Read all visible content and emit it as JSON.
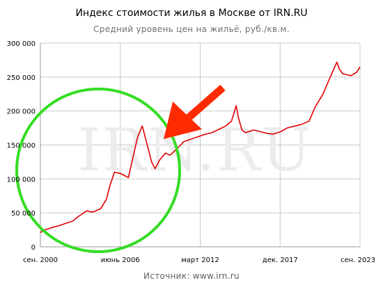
{
  "chart_data": {
    "type": "line",
    "title": "Индекс стоимости жилья в Москве от IRN.RU",
    "subtitle": "Средний уровень цен на жильё, руб./кв.м.",
    "source": "Источник: www.irn.ru",
    "watermark": "IRN.RU",
    "xlabel": "",
    "ylabel": "",
    "ylim": [
      0,
      300000
    ],
    "xlim": [
      "2000-09",
      "2023-09"
    ],
    "y_ticks": [
      {
        "value": 0,
        "label": "0"
      },
      {
        "value": 50000,
        "label": "50 000"
      },
      {
        "value": 100000,
        "label": "100 000"
      },
      {
        "value": 150000,
        "label": "150 000"
      },
      {
        "value": 200000,
        "label": "200 000"
      },
      {
        "value": 250000,
        "label": "250 000"
      },
      {
        "value": 300000,
        "label": "300 000"
      }
    ],
    "x_ticks": [
      {
        "value": "2000-09",
        "label": "сен. 2000"
      },
      {
        "value": "2006-06",
        "label": "июнь 2006"
      },
      {
        "value": "2012-03",
        "label": "март 2012"
      },
      {
        "value": "2017-12",
        "label": "дек. 2017"
      },
      {
        "value": "2023-09",
        "label": "сен. 2023"
      }
    ],
    "grid": true,
    "colors": {
      "line": "#e00000",
      "circle": "#33dd22",
      "arrow": "#ff2a00",
      "grid": "#c8c8c8"
    },
    "series": [
      {
        "name": "",
        "x": [
          "2000-09",
          "2001-01",
          "2001-06",
          "2002-01",
          "2002-06",
          "2003-01",
          "2003-06",
          "2004-01",
          "2004-06",
          "2005-01",
          "2005-06",
          "2005-09",
          "2006-01",
          "2006-06",
          "2007-01",
          "2007-06",
          "2007-09",
          "2008-01",
          "2008-06",
          "2008-09",
          "2008-12",
          "2009-04",
          "2009-09",
          "2010-01",
          "2010-06",
          "2011-01",
          "2011-06",
          "2012-01",
          "2012-06",
          "2013-01",
          "2013-06",
          "2014-01",
          "2014-06",
          "2014-10",
          "2014-12",
          "2015-03",
          "2015-06",
          "2016-01",
          "2016-06",
          "2017-01",
          "2017-06",
          "2018-01",
          "2018-06",
          "2019-01",
          "2019-06",
          "2020-01",
          "2020-06",
          "2021-01",
          "2021-06",
          "2022-01",
          "2022-03",
          "2022-06",
          "2023-01",
          "2023-06",
          "2023-09"
        ],
        "values": [
          21000,
          25000,
          28000,
          31000,
          34000,
          38000,
          45000,
          53000,
          51000,
          56000,
          70000,
          90000,
          110000,
          108000,
          102000,
          140000,
          162000,
          178000,
          145000,
          125000,
          115000,
          128000,
          138000,
          135000,
          143000,
          155000,
          158000,
          162000,
          165000,
          168000,
          172000,
          178000,
          185000,
          208000,
          190000,
          172000,
          168000,
          172000,
          170000,
          167000,
          166000,
          170000,
          175000,
          178000,
          180000,
          185000,
          205000,
          225000,
          245000,
          272000,
          262000,
          255000,
          252000,
          257000,
          265000
        ]
      }
    ],
    "annotations": [
      {
        "type": "circle",
        "description": "green circle highlighting 2000–2009 period"
      },
      {
        "type": "arrow",
        "description": "red arrow pointing to 2008 peak"
      }
    ]
  }
}
